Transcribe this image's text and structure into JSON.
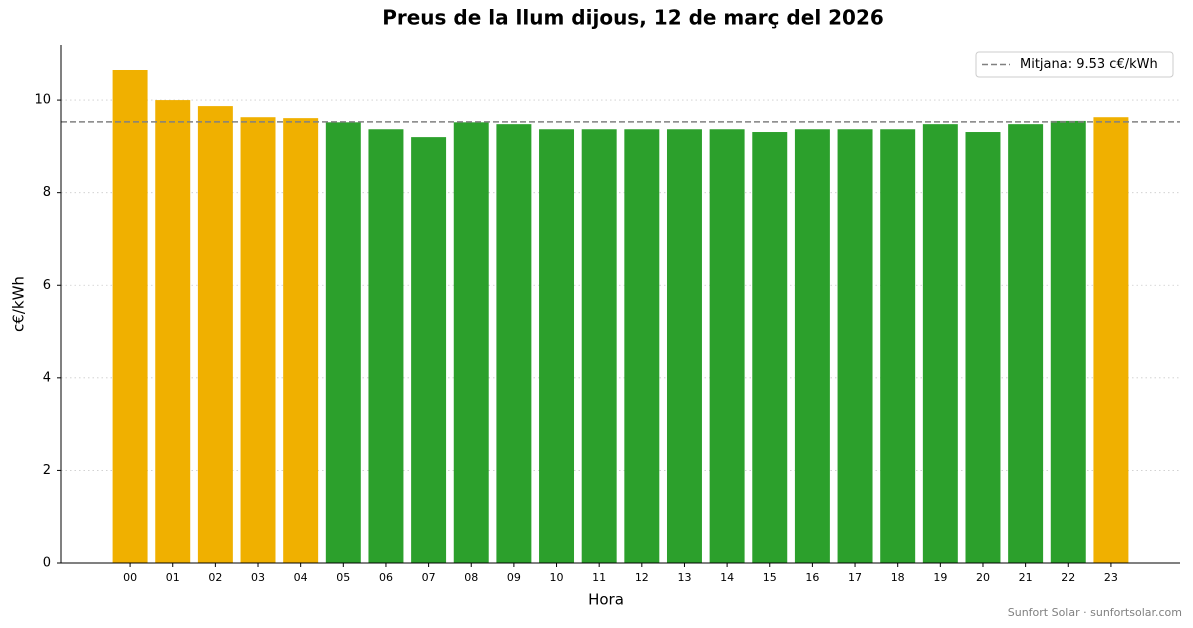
{
  "chart_data": {
    "type": "bar",
    "title": "Preus de la llum dijous, 12 de març del 2026",
    "x_label": "Hora",
    "y_label": "c€/kWh",
    "categories": [
      "00",
      "01",
      "02",
      "03",
      "04",
      "05",
      "06",
      "07",
      "08",
      "09",
      "10",
      "11",
      "12",
      "13",
      "14",
      "15",
      "16",
      "17",
      "18",
      "19",
      "20",
      "21",
      "22",
      "23"
    ],
    "values": [
      10.65,
      10.0,
      9.87,
      9.63,
      9.61,
      9.52,
      9.37,
      9.2,
      9.52,
      9.48,
      9.37,
      9.37,
      9.37,
      9.37,
      9.37,
      9.31,
      9.37,
      9.37,
      9.37,
      9.48,
      9.31,
      9.48,
      9.55,
      9.63
    ],
    "colors": [
      "#f0b000",
      "#f0b000",
      "#f0b000",
      "#f0b000",
      "#f0b000",
      "#2ca02c",
      "#2ca02c",
      "#2ca02c",
      "#2ca02c",
      "#2ca02c",
      "#2ca02c",
      "#2ca02c",
      "#2ca02c",
      "#2ca02c",
      "#2ca02c",
      "#2ca02c",
      "#2ca02c",
      "#2ca02c",
      "#2ca02c",
      "#2ca02c",
      "#2ca02c",
      "#2ca02c",
      "#2ca02c",
      "#f0b000"
    ],
    "mean": {
      "value": 9.53,
      "label": "Mitjana: 9.53 c€/kWh",
      "color": "#808080"
    },
    "ylim": [
      0,
      11.19
    ],
    "yticks": [
      0,
      2,
      4,
      6,
      8,
      10
    ],
    "grid": true,
    "legend_position": "upper right",
    "footer": "Sunfort Solar · sunfortsolar.com"
  }
}
